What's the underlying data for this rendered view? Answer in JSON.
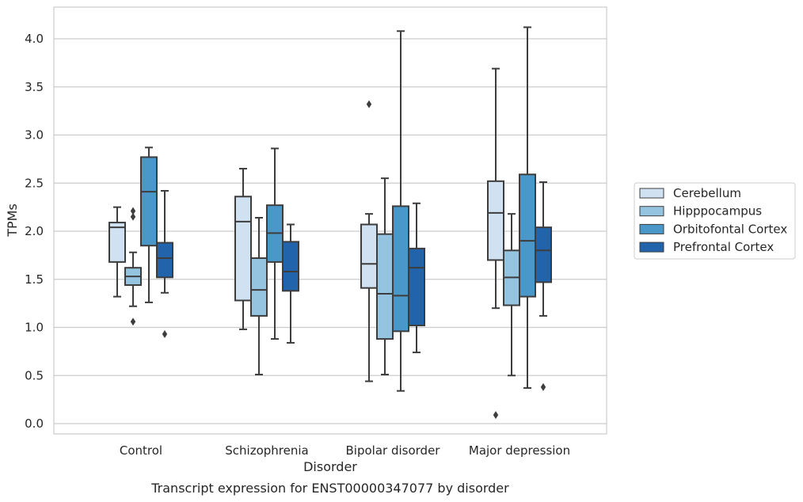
{
  "chart_data": {
    "type": "box",
    "title": "Transcript expression for ENST00000347077 by disorder",
    "xlabel": "Disorder",
    "ylabel": "TPMs",
    "ylim": [
      -0.1,
      4.35
    ],
    "yticks": [
      "0.0",
      "0.5",
      "1.0",
      "1.5",
      "2.0",
      "2.5",
      "3.0",
      "3.5",
      "4.0"
    ],
    "categories": [
      "Control",
      "Schizophrenia",
      "Bipolar disorder",
      "Major depression"
    ],
    "grid": "horizontal",
    "legend_position": "right",
    "series": [
      {
        "name": "Cerebellum",
        "color": "#d0e1f2",
        "boxes": [
          {
            "whislo": 1.32,
            "q1": 1.68,
            "med": 2.04,
            "q3": 2.09,
            "whishi": 2.25,
            "fliers": []
          },
          {
            "whislo": 0.98,
            "q1": 1.28,
            "med": 2.1,
            "q3": 2.36,
            "whishi": 2.65,
            "fliers": []
          },
          {
            "whislo": 0.44,
            "q1": 1.41,
            "med": 1.66,
            "q3": 2.07,
            "whishi": 2.18,
            "fliers": [
              3.32
            ]
          },
          {
            "whislo": 1.2,
            "q1": 1.7,
            "med": 2.19,
            "q3": 2.52,
            "whishi": 3.69,
            "fliers": [
              0.09
            ]
          }
        ]
      },
      {
        "name": "Hipppocampus",
        "color": "#94c4df",
        "boxes": [
          {
            "whislo": 1.22,
            "q1": 1.44,
            "med": 1.53,
            "q3": 1.62,
            "whishi": 1.78,
            "fliers": [
              1.06,
              2.15,
              2.21
            ]
          },
          {
            "whislo": 0.51,
            "q1": 1.12,
            "med": 1.39,
            "q3": 1.72,
            "whishi": 2.14,
            "fliers": []
          },
          {
            "whislo": 0.51,
            "q1": 0.88,
            "med": 1.35,
            "q3": 1.97,
            "whishi": 2.55,
            "fliers": []
          },
          {
            "whislo": 0.5,
            "q1": 1.23,
            "med": 1.52,
            "q3": 1.8,
            "whishi": 2.18,
            "fliers": []
          }
        ]
      },
      {
        "name": "Orbitofontal Cortex",
        "color": "#4a98c9",
        "boxes": [
          {
            "whislo": 1.26,
            "q1": 1.85,
            "med": 2.41,
            "q3": 2.77,
            "whishi": 2.87,
            "fliers": []
          },
          {
            "whislo": 0.88,
            "q1": 1.68,
            "med": 1.98,
            "q3": 2.27,
            "whishi": 2.86,
            "fliers": []
          },
          {
            "whislo": 0.34,
            "q1": 0.96,
            "med": 1.33,
            "q3": 2.26,
            "whishi": 4.08,
            "fliers": []
          },
          {
            "whislo": 0.37,
            "q1": 1.32,
            "med": 1.9,
            "q3": 2.59,
            "whishi": 4.12,
            "fliers": []
          }
        ]
      },
      {
        "name": "Prefrontal Cortex",
        "color": "#2164ab",
        "boxes": [
          {
            "whislo": 1.36,
            "q1": 1.52,
            "med": 1.72,
            "q3": 1.88,
            "whishi": 2.42,
            "fliers": [
              0.93
            ]
          },
          {
            "whislo": 0.84,
            "q1": 1.38,
            "med": 1.58,
            "q3": 1.89,
            "whishi": 2.07,
            "fliers": []
          },
          {
            "whislo": 0.74,
            "q1": 1.02,
            "med": 1.62,
            "q3": 1.82,
            "whishi": 2.29,
            "fliers": []
          },
          {
            "whislo": 1.12,
            "q1": 1.47,
            "med": 1.8,
            "q3": 2.04,
            "whishi": 2.51,
            "fliers": [
              0.38
            ]
          }
        ]
      }
    ]
  }
}
